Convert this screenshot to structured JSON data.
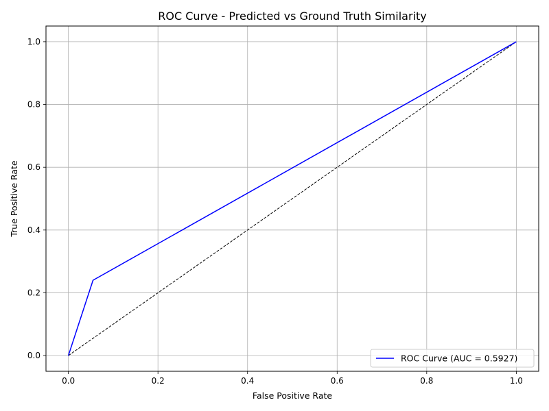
{
  "chart_data": {
    "type": "line",
    "title": "ROC Curve - Predicted vs Ground Truth Similarity",
    "xlabel": "False Positive Rate",
    "ylabel": "True Positive Rate",
    "xlim": [
      -0.05,
      1.05
    ],
    "ylim": [
      -0.05,
      1.05
    ],
    "xticks": [
      0.0,
      0.2,
      0.4,
      0.6,
      0.8,
      1.0
    ],
    "yticks": [
      0.0,
      0.2,
      0.4,
      0.6,
      0.8,
      1.0
    ],
    "xtick_labels": [
      "0.0",
      "0.2",
      "0.4",
      "0.6",
      "0.8",
      "1.0"
    ],
    "ytick_labels": [
      "0.0",
      "0.2",
      "0.4",
      "0.6",
      "0.8",
      "1.0"
    ],
    "grid": true,
    "legend_position": "lower-right",
    "series": [
      {
        "name": "ROC Curve (AUC = 0.5927)",
        "color": "#0000ff",
        "style": "solid",
        "x": [
          0.0,
          0.055,
          1.0
        ],
        "y": [
          0.0,
          0.24,
          1.0
        ]
      },
      {
        "color": "#000000",
        "style": "dashed",
        "x": [
          0.0,
          1.0
        ],
        "y": [
          0.0,
          1.0
        ]
      }
    ]
  }
}
